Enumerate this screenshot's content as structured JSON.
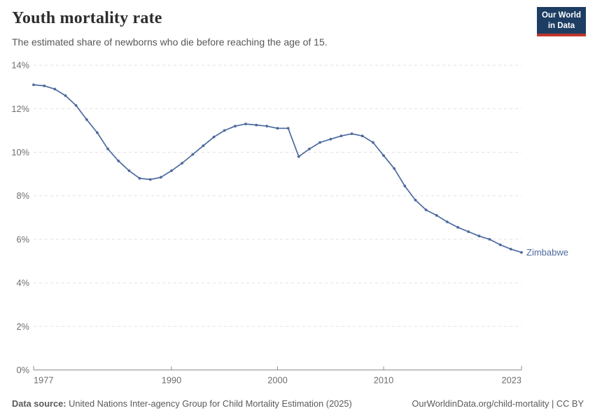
{
  "header": {
    "title": "Youth mortality rate",
    "subtitle": "The estimated share of newborns who die before reaching the age of 15.",
    "logo": {
      "line1": "Our World",
      "line2": "in Data"
    }
  },
  "chart_data": {
    "type": "line",
    "title": "Youth mortality rate",
    "grid": "horizontal-dashed",
    "legend_position": "end-of-line",
    "x_axis": {
      "min": 1977,
      "max": 2023,
      "ticks": [
        {
          "v": 1977,
          "label": "1977"
        },
        {
          "v": 1990,
          "label": "1990"
        },
        {
          "v": 2000,
          "label": "2000"
        },
        {
          "v": 2010,
          "label": "2010"
        },
        {
          "v": 2023,
          "label": "2023"
        }
      ]
    },
    "y_axis": {
      "min": 0,
      "max": 14,
      "unit": "%",
      "ticks": [
        {
          "v": 0,
          "label": "0%"
        },
        {
          "v": 2,
          "label": "2%"
        },
        {
          "v": 4,
          "label": "4%"
        },
        {
          "v": 6,
          "label": "6%"
        },
        {
          "v": 8,
          "label": "8%"
        },
        {
          "v": 10,
          "label": "10%"
        },
        {
          "v": 12,
          "label": "12%"
        },
        {
          "v": 14,
          "label": "14%"
        }
      ]
    },
    "series": [
      {
        "name": "Zimbabwe",
        "color": "#4c6a9e",
        "start_year": 1977,
        "values": [
          13.1,
          13.05,
          12.9,
          12.6,
          12.15,
          11.5,
          10.9,
          10.15,
          9.6,
          9.15,
          8.8,
          8.75,
          8.85,
          9.15,
          9.5,
          9.9,
          10.3,
          10.7,
          11.0,
          11.2,
          11.3,
          11.25,
          11.2,
          11.1,
          11.1,
          9.8,
          10.15,
          10.45,
          10.6,
          10.75,
          10.85,
          10.75,
          10.45,
          9.85,
          9.25,
          8.45,
          7.8,
          7.35,
          7.1,
          6.8,
          6.55,
          6.35,
          6.15,
          6.0,
          5.75,
          5.55,
          5.4
        ]
      }
    ]
  },
  "footer": {
    "datasource_label": "Data source:",
    "datasource_text": "United Nations Inter-agency Group for Child Mortality Estimation (2025)",
    "rights": "OurWorldinData.org/child-mortality | CC BY"
  },
  "colors": {
    "line": "#4c6a9e",
    "logo_bg": "#1d3d63",
    "logo_red": "#c0362c",
    "grid": "#e2e2e2",
    "axis": "#8f8f8f",
    "axis_text": "#6e6e6e",
    "footer_text": "#5a5a5a"
  }
}
